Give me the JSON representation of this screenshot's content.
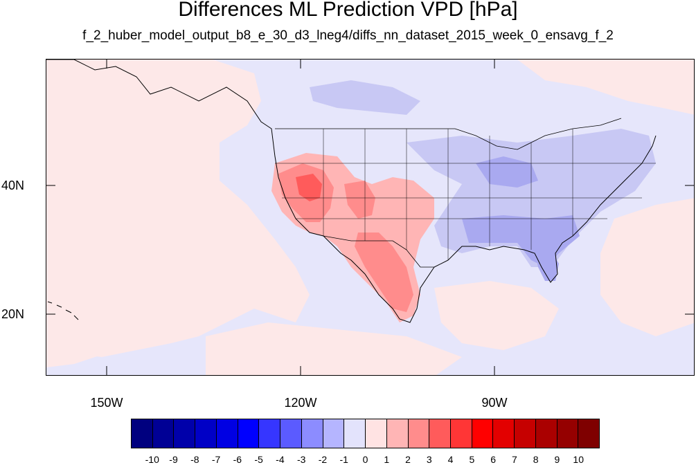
{
  "title": "Differences ML Prediction VPD [hPa]",
  "subtitle": "f_2_huber_model_output_b8_e_30_d3_lneg4/diffs_nn_dataset_2015_week_0_ensavg_f_2",
  "latitude_labels": [
    "40N",
    "20N"
  ],
  "longitude_labels": [
    "150W",
    "120W",
    "90W"
  ],
  "colorbar": {
    "labels": [
      "-10",
      "-9",
      "-8",
      "-7",
      "-6",
      "-5",
      "-4",
      "-3",
      "-2",
      "-1",
      "0",
      "1",
      "2",
      "3",
      "4",
      "5",
      "6",
      "7",
      "8",
      "9",
      "10"
    ],
    "colors": [
      "#00007f",
      "#000095",
      "#0000aa",
      "#0000c6",
      "#0000e3",
      "#0000ff",
      "#3636ff",
      "#5b5bff",
      "#8c8cff",
      "#b5b5ff",
      "#e3e3fc",
      "#ffe3e3",
      "#ffb5b5",
      "#ff8c8c",
      "#ff5b5b",
      "#ff3636",
      "#ff0000",
      "#e30000",
      "#c60000",
      "#aa0000",
      "#950000",
      "#7f0000"
    ]
  },
  "colors": {
    "background_near_zero": "#e6e6fb",
    "slight_positive": "#fde8e8",
    "slight_negative": "#c8c8f4"
  }
}
